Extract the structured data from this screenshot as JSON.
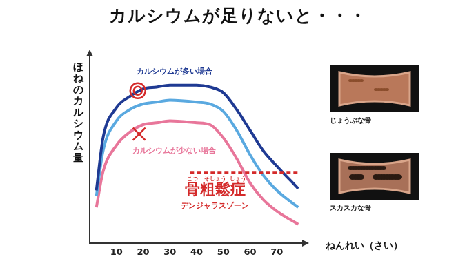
{
  "chart_data": {
    "type": "line",
    "title": "カルシウムが足りないと・・・",
    "y_label": "ほねのカルシウム量",
    "x_label": "ねんれい（さい）",
    "x": [
      2.5,
      5,
      10,
      15,
      20,
      25,
      30,
      40,
      45,
      50,
      55,
      60,
      65,
      70,
      78
    ],
    "series": [
      {
        "name": "カルシウムが多い場合",
        "color": "#1f3a93",
        "values": [
          28,
          56,
          72,
          78,
          82,
          83,
          84,
          84,
          83,
          80,
          71,
          60,
          49,
          41,
          29
        ]
      },
      {
        "color": "#5aa9e0",
        "values": [
          25,
          49,
          65,
          71,
          74,
          75,
          76,
          75,
          74,
          70,
          60,
          47,
          36,
          28,
          19
        ]
      },
      {
        "name": "カルシウムが少ない場合",
        "color": "#e8769a",
        "values": [
          19,
          38,
          52,
          59,
          63,
          64,
          65,
          64,
          63,
          56,
          45,
          32,
          23,
          17,
          10
        ]
      }
    ],
    "xlim": [
      0,
      80
    ],
    "xticks": [
      10,
      20,
      30,
      40,
      50,
      60,
      70
    ],
    "ylim": [
      0,
      100
    ],
    "yticks": [],
    "tick_labels": "x",
    "grid": false,
    "markers": [
      {
        "x": 18,
        "y": 81,
        "marker": "double_circle",
        "color": "#d42a2a"
      },
      {
        "x": 18.5,
        "y": 58,
        "marker": "cross",
        "color": "#d42a2a"
      }
    ],
    "threshold": {
      "y": 37.5,
      "x_from": 37.5,
      "x_to": 78,
      "color": "#d42a2a",
      "line_style": "dashed"
    },
    "annotation": {
      "ruby": [
        {
          "base": "骨",
          "ruby": "こつ"
        },
        {
          "base": "粗鬆",
          "ruby": "そしょう"
        },
        {
          "base": "症",
          "ruby": "しょう"
        }
      ],
      "subtext": "デンジャラスゾーン",
      "x": 35.5,
      "y": 28,
      "color": "#d42a2a"
    },
    "images": [
      {
        "caption": "じょうぶな骨"
      },
      {
        "caption": "スカスカな骨"
      }
    ]
  }
}
